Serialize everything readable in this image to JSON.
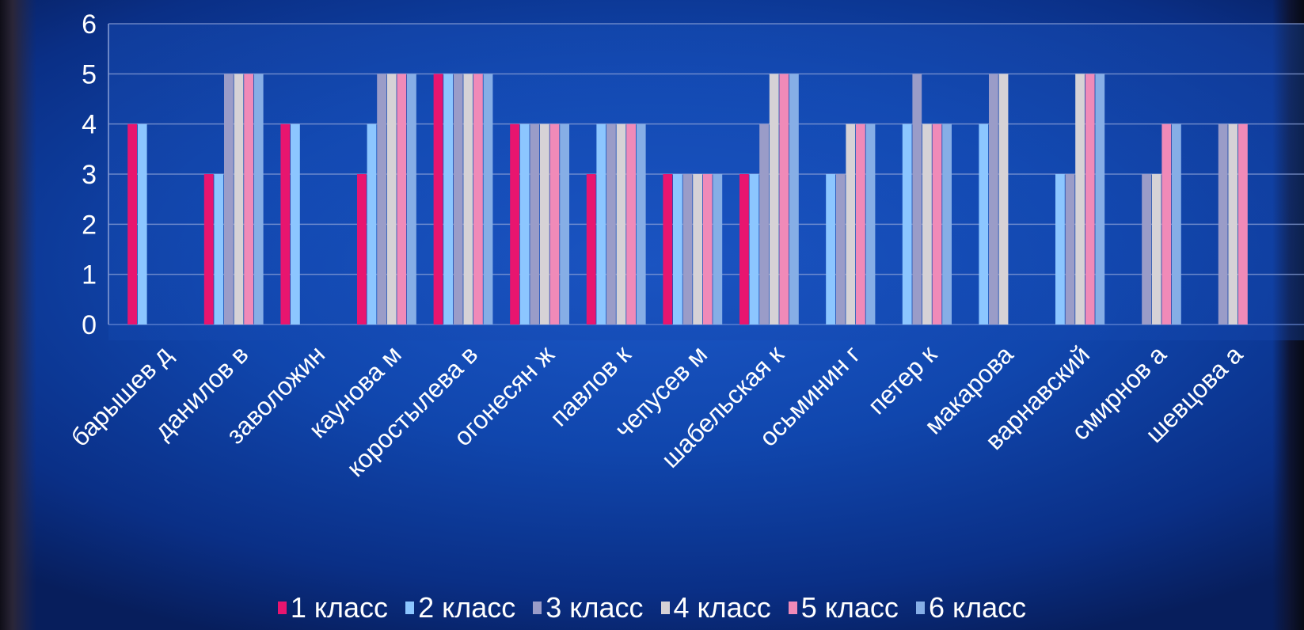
{
  "chart_data": {
    "type": "bar",
    "title": "",
    "xlabel": "",
    "ylabel": "",
    "ylim": [
      0,
      6
    ],
    "yticks": [
      "0",
      "1",
      "2",
      "3",
      "4",
      "5",
      "6"
    ],
    "grid": true,
    "legend_position": "bottom",
    "categories": [
      "барышев д",
      "данилов в",
      "заволожин",
      "каунова м",
      "коростылева в",
      "огонесян ж",
      "павлов к",
      "чепусев м",
      "шабельская к",
      "осьминин г",
      "петер к",
      "макарова",
      "варнавский",
      "смирнов а",
      "шевцова а"
    ],
    "series": [
      {
        "name": "1 класс",
        "color": "#e8156f",
        "values": [
          4,
          3,
          4,
          3,
          5,
          4,
          3,
          3,
          3,
          null,
          null,
          null,
          null,
          null,
          null
        ]
      },
      {
        "name": "2 класс",
        "color": "#8cc6ff",
        "values": [
          4,
          3,
          4,
          4,
          5,
          4,
          4,
          3,
          3,
          3,
          4,
          4,
          3,
          null,
          null
        ]
      },
      {
        "name": "3 класс",
        "color": "#9a9cc8",
        "values": [
          null,
          5,
          null,
          5,
          5,
          4,
          4,
          3,
          4,
          3,
          5,
          5,
          3,
          3,
          4
        ]
      },
      {
        "name": "4 класс",
        "color": "#d6d2d6",
        "values": [
          null,
          5,
          null,
          5,
          5,
          4,
          4,
          3,
          5,
          4,
          4,
          5,
          5,
          3,
          4
        ]
      },
      {
        "name": "5 класс",
        "color": "#f08ab8",
        "values": [
          null,
          5,
          null,
          5,
          5,
          4,
          4,
          3,
          5,
          4,
          4,
          null,
          5,
          4,
          4
        ]
      },
      {
        "name": "6 класс",
        "color": "#86aee6",
        "values": [
          null,
          5,
          null,
          5,
          5,
          4,
          4,
          3,
          5,
          4,
          4,
          null,
          5,
          4,
          null
        ]
      }
    ]
  }
}
